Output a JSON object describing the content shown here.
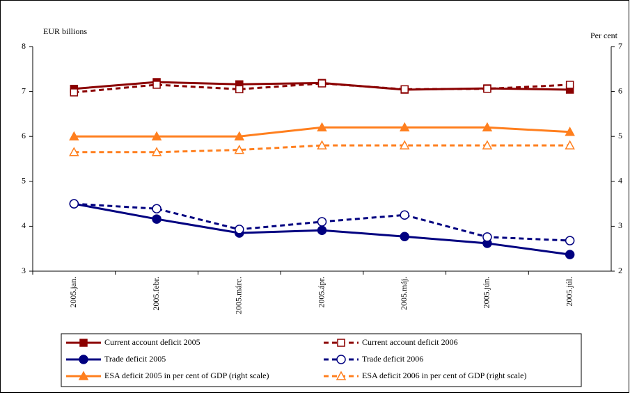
{
  "chart_data": {
    "type": "line",
    "ylabel": "EUR billions",
    "y2label": "Per cent",
    "categories": [
      "2005.jan.",
      "2005.febr.",
      "2005.márc.",
      "2005.ápr.",
      "2005.máj.",
      "2005.jún.",
      "2005.júl."
    ],
    "ylim": [
      3,
      8
    ],
    "yticks": [
      3,
      4,
      5,
      6,
      7,
      8
    ],
    "y2lim": [
      2,
      7
    ],
    "y2ticks": [
      2,
      3,
      4,
      5,
      6,
      7
    ],
    "series": [
      {
        "name": "Current account deficit 2005",
        "color": "#8b0000",
        "dash": false,
        "marker": "square",
        "filled": true,
        "values": [
          7.06,
          7.21,
          7.16,
          7.19,
          7.04,
          7.07,
          7.04
        ]
      },
      {
        "name": "Current account deficit 2006",
        "color": "#8b0000",
        "dash": true,
        "marker": "square",
        "filled": false,
        "values": [
          6.98,
          7.15,
          7.05,
          7.18,
          7.05,
          7.06,
          7.15
        ]
      },
      {
        "name": "Trade deficit 2005",
        "color": "#000080",
        "dash": false,
        "marker": "circle",
        "filled": true,
        "values": [
          4.5,
          4.16,
          3.85,
          3.91,
          3.77,
          3.62,
          3.37
        ]
      },
      {
        "name": "Trade deficit 2006",
        "color": "#000080",
        "dash": true,
        "marker": "circle",
        "filled": false,
        "values": [
          4.5,
          4.39,
          3.93,
          4.1,
          4.25,
          3.76,
          3.68
        ]
      },
      {
        "name": "ESA deficit 2005 in per cent of GDP (right scale)",
        "color": "#ff7f1e",
        "dash": false,
        "marker": "triangle",
        "filled": true,
        "axis": "y2",
        "values": [
          5.0,
          5.0,
          5.0,
          5.2,
          5.2,
          5.2,
          5.1
        ]
      },
      {
        "name": "ESA deficit 2006 in per cent of GDP (right scale)",
        "color": "#ff7f1e",
        "dash": true,
        "marker": "triangle",
        "filled": false,
        "axis": "y2",
        "values": [
          4.65,
          4.65,
          4.7,
          4.8,
          4.8,
          4.8,
          4.8
        ]
      }
    ]
  }
}
